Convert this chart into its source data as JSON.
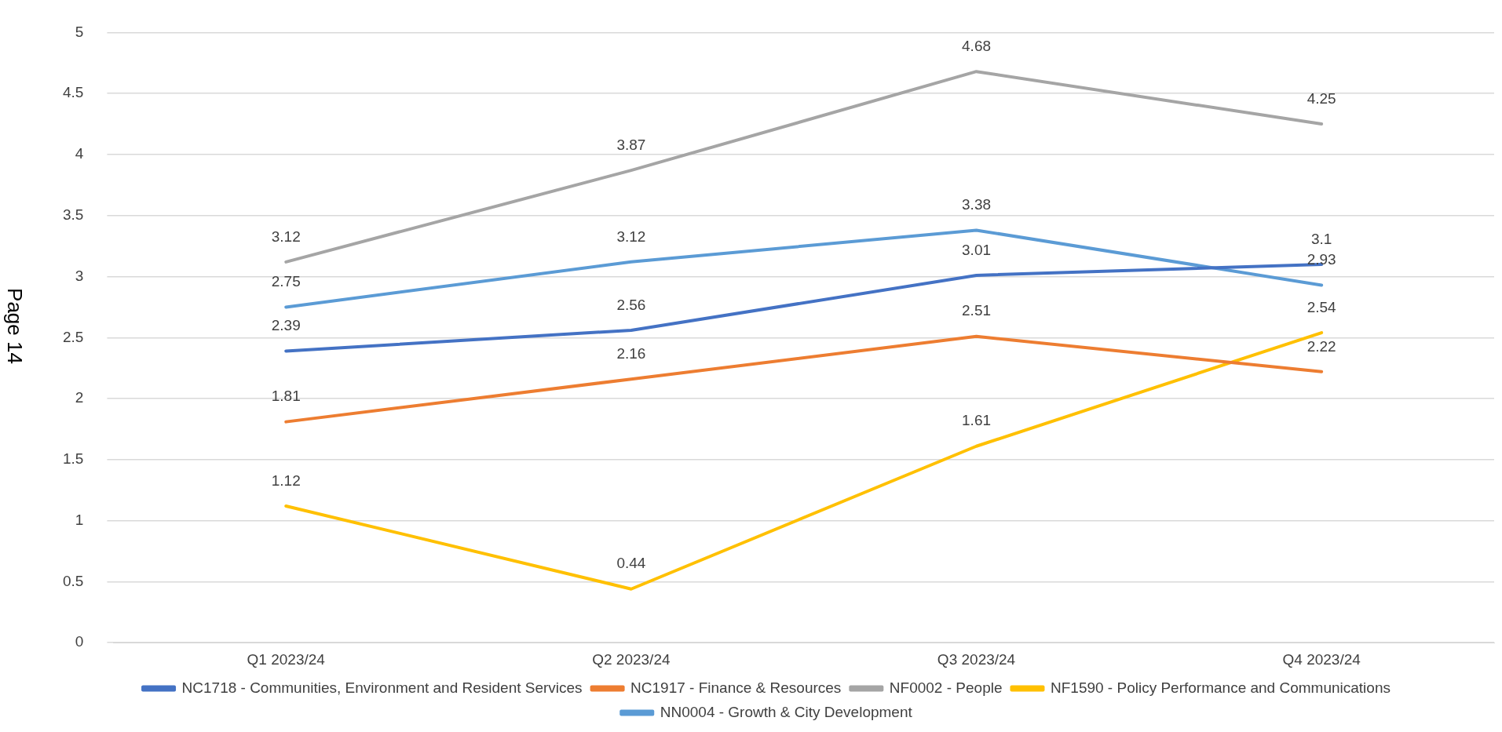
{
  "chart_data": {
    "type": "line",
    "categories": [
      "Q1 2023/24",
      "Q2 2023/24",
      "Q3 2023/24",
      "Q4 2023/24"
    ],
    "series": [
      {
        "name": "NC1718 - Communities, Environment and Resident Services",
        "color": "#4472c4",
        "values": [
          2.39,
          2.56,
          3.01,
          3.1
        ]
      },
      {
        "name": "NC1917 - Finance & Resources",
        "color": "#ed7d31",
        "values": [
          1.81,
          2.16,
          2.51,
          2.22
        ]
      },
      {
        "name": "NF0002 - People",
        "color": "#a5a5a5",
        "values": [
          3.12,
          3.87,
          4.68,
          4.25
        ]
      },
      {
        "name": "NF1590 - Policy Performance and Communications",
        "color": "#ffc000",
        "values": [
          1.12,
          0.44,
          1.61,
          2.54
        ]
      },
      {
        "name": "NN0004 - Growth & City Development",
        "color": "#5b9bd5",
        "values": [
          2.75,
          3.12,
          3.38,
          2.93
        ]
      }
    ],
    "ylim": [
      0,
      5
    ],
    "yticks": [
      0,
      0.5,
      1,
      1.5,
      2,
      2.5,
      3,
      3.5,
      4,
      4.5,
      5
    ],
    "grid": "y",
    "legend": "bottom",
    "data_labels": true,
    "marker": "none",
    "line_style": "solid",
    "annotations": [
      "Page 14"
    ]
  }
}
